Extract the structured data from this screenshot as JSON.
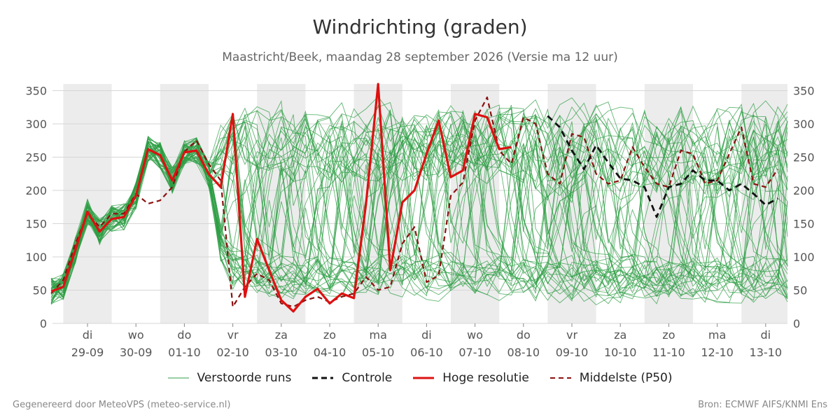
{
  "chart_data": {
    "type": "line",
    "title": "Windrichting (graden)",
    "subtitle": "Maastricht/Beek, maandag 28 september 2026 (Versie ma 12 uur)",
    "ylim": [
      0,
      360
    ],
    "yticks": [
      0,
      50,
      100,
      150,
      200,
      250,
      300,
      350
    ],
    "grid": true,
    "legend_position": "bottom",
    "x_start": "2026-09-28 18:00",
    "x_end": "2026-10-13 18:00",
    "x_step": "6h",
    "days": [
      {
        "day": "di",
        "date": "29-09"
      },
      {
        "day": "wo",
        "date": "30-09"
      },
      {
        "day": "do",
        "date": "01-10"
      },
      {
        "day": "vr",
        "date": "02-10"
      },
      {
        "day": "za",
        "date": "03-10"
      },
      {
        "day": "zo",
        "date": "04-10"
      },
      {
        "day": "ma",
        "date": "05-10"
      },
      {
        "day": "di",
        "date": "06-10"
      },
      {
        "day": "wo",
        "date": "07-10"
      },
      {
        "day": "do",
        "date": "08-10"
      },
      {
        "day": "vr",
        "date": "09-10"
      },
      {
        "day": "za",
        "date": "10-10"
      },
      {
        "day": "zo",
        "date": "11-10"
      },
      {
        "day": "ma",
        "date": "12-10"
      },
      {
        "day": "di",
        "date": "13-10"
      }
    ],
    "series": [
      {
        "name": "Hoge resolutie",
        "color": "#dd1111",
        "values": [
          48,
          55,
          110,
          168,
          138,
          157,
          160,
          192,
          262,
          253,
          215,
          257,
          260,
          225,
          205,
          315,
          40,
          127,
          80,
          35,
          18,
          40,
          52,
          30,
          45,
          38,
          180,
          365,
          80,
          182,
          200,
          255,
          305,
          220,
          230,
          315,
          310,
          262,
          265
        ]
      },
      {
        "name": "Controle",
        "color": "#111111",
        "values": [
          null,
          null,
          null,
          null,
          null,
          null,
          null,
          null,
          null,
          null,
          null,
          null,
          null,
          null,
          null,
          null,
          null,
          null,
          null,
          null,
          null,
          null,
          null,
          null,
          null,
          null,
          null,
          null,
          null,
          null,
          null,
          null,
          null,
          null,
          null,
          null,
          null,
          null,
          null,
          null,
          null,
          312,
          295,
          260,
          232,
          268,
          242,
          218,
          215,
          205,
          160,
          205,
          210,
          230,
          215,
          215,
          200,
          210,
          195,
          178,
          188,
          175
        ]
      },
      {
        "name": "Middelste (P50)",
        "color": "#8b1010",
        "values": [
          45,
          65,
          120,
          165,
          145,
          165,
          165,
          195,
          180,
          185,
          205,
          258,
          275,
          240,
          215,
          25,
          55,
          75,
          65,
          30,
          25,
          35,
          40,
          32,
          40,
          45,
          70,
          50,
          55,
          120,
          145,
          62,
          72,
          192,
          212,
          305,
          340,
          260,
          240,
          310,
          300,
          225,
          210,
          285,
          280,
          225,
          210,
          215,
          265,
          235,
          210,
          205,
          260,
          255,
          210,
          215,
          255,
          295,
          210,
          205,
          232
        ]
      }
    ],
    "ensemble_name": "Verstoorde runs",
    "ensemble_color": "#2e9e44",
    "ensemble_members": 50
  },
  "legend": [
    {
      "label": "Verstoorde runs",
      "style": "thin",
      "color": "#2e9e44"
    },
    {
      "label": "Controle",
      "style": "dash",
      "color": "#111111"
    },
    {
      "label": "Hoge resolutie",
      "style": "solid",
      "color": "#dd1111"
    },
    {
      "label": "Middelste (P50)",
      "style": "dash",
      "color": "#8b1010"
    }
  ],
  "footer": {
    "left": "Gegenereerd door MeteoVPS (meteo-service.nl)",
    "right": "Bron: ECMWF AIFS/KNMI Ens"
  }
}
